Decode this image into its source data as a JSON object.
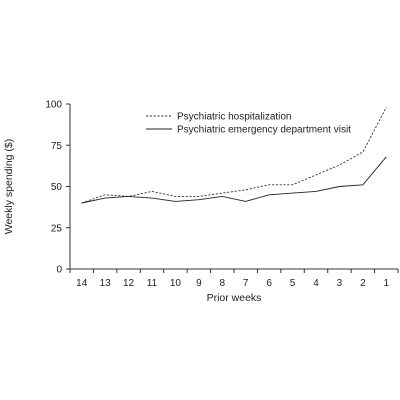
{
  "chart_data": {
    "type": "line",
    "title": "",
    "xlabel": "Prior weeks",
    "ylabel": "Weekly spending ($)",
    "x": [
      "14",
      "13",
      "12",
      "11",
      "10",
      "9",
      "8",
      "7",
      "6",
      "5",
      "4",
      "3",
      "2",
      "1"
    ],
    "ylim": [
      0,
      100
    ],
    "yticks": [
      "0",
      "25",
      "50",
      "75",
      "100"
    ],
    "grid": false,
    "legend_position": "top-center",
    "series": [
      {
        "name": "Psychiatric hospitalization",
        "style": "dashed",
        "color": "#333333",
        "values": [
          40,
          45,
          44,
          47,
          44,
          44,
          46,
          48,
          51,
          51,
          57,
          63,
          71,
          98
        ]
      },
      {
        "name": "Psychiatric emergency department visit",
        "style": "solid",
        "color": "#222222",
        "values": [
          40,
          43,
          44,
          43,
          41,
          42,
          44,
          41,
          45,
          46,
          47,
          50,
          51,
          68
        ]
      }
    ]
  }
}
